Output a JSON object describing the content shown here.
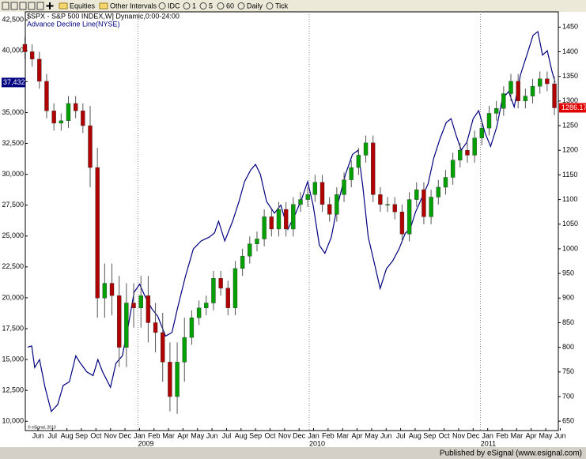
{
  "toolbar": [
    "Equities",
    "Other Intervals",
    "IDC",
    "1",
    "5",
    "60",
    "Daily",
    "Tick"
  ],
  "footer": "Published by eSignal (www.esignal.com)",
  "chart_data": {
    "type": "candlestick",
    "title": "$SPX - S&P 500 INDEX,W] Dynamic,0:00-24:00",
    "watermark": "© eSignal, 2010",
    "xlim": [
      -0.87,
      35.87
    ],
    "ylim": [
      9250,
      43150
    ],
    "y2lim": [
      631,
      1481
    ],
    "yticks": [
      {
        "value": 10000,
        "label": "10,000"
      },
      {
        "value": 12500,
        "label": "12,500"
      },
      {
        "value": 15000,
        "label": "15,000"
      },
      {
        "value": 17500,
        "label": "17,500"
      },
      {
        "value": 20000,
        "label": "20,000"
      },
      {
        "value": 22500,
        "label": "22,500"
      },
      {
        "value": 25000,
        "label": "25,000"
      },
      {
        "value": 27500,
        "label": "27,500"
      },
      {
        "value": 30000,
        "label": "30,000"
      },
      {
        "value": 32500,
        "label": "32,500"
      },
      {
        "value": 35000,
        "label": "35,000"
      },
      {
        "value": 37500,
        "label": "37,500"
      },
      {
        "value": 40000,
        "label": "40,000"
      },
      {
        "value": 42500,
        "label": "42,500"
      }
    ],
    "y2ticks": [
      650,
      700,
      750,
      800,
      850,
      900,
      950,
      1000,
      1050,
      1100,
      1150,
      1200,
      1250,
      1300,
      1350,
      1400,
      1450
    ],
    "xticks": [
      {
        "value": 0,
        "label": "Jun"
      },
      {
        "value": 1,
        "label": "Jul"
      },
      {
        "value": 2,
        "label": "Aug"
      },
      {
        "value": 3,
        "label": "Sep"
      },
      {
        "value": 4,
        "label": "Oct"
      },
      {
        "value": 5,
        "label": "Nov"
      },
      {
        "value": 6,
        "label": "Dec"
      },
      {
        "value": 7,
        "label": "Jan"
      },
      {
        "value": 8,
        "label": "Feb"
      },
      {
        "value": 9,
        "label": "Mar"
      },
      {
        "value": 10,
        "label": "Apr"
      },
      {
        "value": 11,
        "label": "May"
      },
      {
        "value": 12,
        "label": "Jun"
      },
      {
        "value": 13,
        "label": "Jul"
      },
      {
        "value": 14,
        "label": "Aug"
      },
      {
        "value": 15,
        "label": "Sep"
      },
      {
        "value": 16,
        "label": "Oct"
      },
      {
        "value": 17,
        "label": "Nov"
      },
      {
        "value": 18,
        "label": "Dec"
      },
      {
        "value": 19,
        "label": "Jan"
      },
      {
        "value": 20,
        "label": "Feb"
      },
      {
        "value": 21,
        "label": "Mar"
      },
      {
        "value": 22,
        "label": "Apr"
      },
      {
        "value": 23,
        "label": "May"
      },
      {
        "value": 24,
        "label": "Jun"
      },
      {
        "value": 25,
        "label": "Jul"
      },
      {
        "value": 26,
        "label": "Aug"
      },
      {
        "value": 27,
        "label": "Sep"
      },
      {
        "value": 28,
        "label": "Oct"
      },
      {
        "value": 29,
        "label": "Nov"
      },
      {
        "value": 30,
        "label": "Dec"
      },
      {
        "value": 31,
        "label": "Jan"
      },
      {
        "value": 32,
        "label": "Feb"
      },
      {
        "value": 33,
        "label": "Mar"
      },
      {
        "value": 34,
        "label": "Apr"
      },
      {
        "value": 35,
        "label": "May"
      },
      {
        "value": 36,
        "label": "Jun"
      }
    ],
    "year_labels": [
      {
        "value": 6.9,
        "label": "2009"
      },
      {
        "value": 18.7,
        "label": "2010"
      },
      {
        "value": 30.5,
        "label": "2011"
      }
    ],
    "series": [
      {
        "name": "Advance Decline Line(NYSE)",
        "color": "#000080",
        "axis": "y",
        "x": [
          -0.71,
          -0.43,
          -0.22,
          0.11,
          0.49,
          0.92,
          1.36,
          1.74,
          2.17,
          2.61,
          2.93,
          3.37,
          3.8,
          4.13,
          4.46,
          5,
          5.38,
          5.82,
          6.25,
          6.63,
          7.01,
          7.39,
          7.83,
          8.26,
          8.8,
          9.24,
          9.62,
          10.16,
          10.71,
          11.25,
          11.79,
          12.17,
          12.45,
          12.88,
          13.42,
          13.86,
          14.24,
          14.67,
          15,
          15.33,
          15.76,
          16.3,
          16.74,
          17.23,
          17.77,
          18.21,
          18.59,
          18.97,
          19.4,
          19.78,
          20.22,
          20.65,
          21.2,
          21.68,
          22.07,
          22.39,
          22.77,
          23.15,
          23.59,
          24.02,
          24.46,
          24.89,
          25.33,
          25.65,
          26.03,
          26.47,
          26.9,
          27.28,
          27.72,
          28.15,
          28.48,
          28.8,
          29.18,
          29.57,
          30,
          30.38,
          30.82,
          31.2,
          31.63,
          32.01,
          32.45,
          32.83,
          33.26,
          33.7,
          34.13,
          34.46,
          34.78,
          35.11,
          35.43,
          35.65
        ],
        "values": [
          16000,
          16100,
          14350,
          15000,
          12750,
          10800,
          11350,
          12900,
          13200,
          15300,
          14700,
          14000,
          13700,
          15000,
          14000,
          12750,
          14700,
          15300,
          17900,
          20450,
          21100,
          20100,
          19150,
          18500,
          16900,
          17200,
          19150,
          21700,
          23950,
          24600,
          24900,
          25250,
          26200,
          24600,
          26200,
          27800,
          29400,
          30350,
          30800,
          30000,
          27800,
          26850,
          27500,
          25550,
          26850,
          28100,
          29400,
          27500,
          24250,
          23600,
          24900,
          27500,
          30000,
          31600,
          31950,
          29050,
          24900,
          23000,
          20750,
          22350,
          23000,
          23950,
          25250,
          25550,
          26950,
          28100,
          29250,
          31300,
          32900,
          34200,
          34500,
          33250,
          31950,
          32600,
          34500,
          35150,
          33350,
          32250,
          33850,
          36100,
          36700,
          35450,
          38050,
          39650,
          41250,
          41550,
          39650,
          40000,
          38350,
          37432
        ],
        "value_labels": [
          null,
          null,
          null,
          null,
          null,
          null,
          null,
          null,
          null,
          null,
          null,
          null,
          null,
          null,
          null,
          null,
          null,
          null,
          null,
          null,
          null,
          null,
          null,
          null,
          null,
          null,
          null,
          null,
          null,
          null,
          null,
          null,
          null,
          null,
          null,
          null,
          null,
          null,
          null,
          null,
          null,
          null,
          null,
          null,
          null,
          null,
          null,
          null,
          null,
          null,
          null,
          null,
          null,
          null,
          null,
          null,
          null,
          null,
          null,
          null,
          null,
          null,
          null,
          null,
          null,
          null,
          null,
          null,
          null,
          null,
          null,
          null,
          null,
          null,
          null,
          null,
          null,
          null,
          null,
          null,
          null,
          null,
          null,
          null,
          null,
          null,
          null,
          null,
          null,
          "37,432"
        ]
      },
      {
        "name": "$SPX",
        "axis": "y2",
        "up_color": "#00a000",
        "down_color": "#b00000",
        "x": [
          -0.9,
          -0.4,
          0.1,
          0.6,
          1.1,
          1.6,
          2.1,
          2.6,
          3.1,
          3.6,
          4.1,
          4.6,
          5.1,
          5.6,
          6.1,
          6.6,
          7.1,
          7.6,
          8.1,
          8.6,
          9.1,
          9.6,
          10.1,
          10.6,
          11.1,
          11.6,
          12.1,
          12.6,
          13.1,
          13.6,
          14.1,
          14.6,
          15.1,
          15.6,
          16.1,
          16.6,
          17.1,
          17.6,
          18.1,
          18.6,
          19.1,
          19.6,
          20.1,
          20.6,
          21.1,
          21.6,
          22.1,
          22.6,
          23.1,
          23.6,
          24.1,
          24.6,
          25.1,
          25.6,
          26.1,
          26.6,
          27.1,
          27.6,
          28.1,
          28.6,
          29.1,
          29.6,
          30.1,
          30.6,
          31.1,
          31.6,
          32.1,
          32.6,
          33.1,
          33.6,
          34.1,
          34.6,
          35.1,
          35.6
        ],
        "open": [
          1415,
          1400,
          1385,
          1340,
          1280,
          1255,
          1260,
          1295,
          1280,
          1250,
          1165,
          900,
          930,
          905,
          800,
          890,
          880,
          905,
          850,
          830,
          770,
          700,
          770,
          820,
          860,
          880,
          890,
          940,
          920,
          880,
          960,
          985,
          1010,
          1020,
          1065,
          1040,
          1080,
          1040,
          1090,
          1100,
          1110,
          1135,
          1090,
          1070,
          1110,
          1140,
          1165,
          1190,
          1215,
          1110,
          1090,
          1090,
          1075,
          1030,
          1100,
          1120,
          1065,
          1105,
          1125,
          1145,
          1180,
          1200,
          1190,
          1225,
          1245,
          1275,
          1285,
          1315,
          1340,
          1300,
          1310,
          1330,
          1345,
          1335
        ],
        "high": [
          1430,
          1415,
          1400,
          1355,
          1295,
          1275,
          1310,
          1310,
          1295,
          1290,
          1205,
          970,
          970,
          945,
          930,
          930,
          945,
          945,
          890,
          870,
          810,
          810,
          860,
          875,
          895,
          905,
          955,
          955,
          935,
          975,
          1000,
          1025,
          1035,
          1080,
          1080,
          1095,
          1095,
          1105,
          1115,
          1125,
          1150,
          1150,
          1105,
          1125,
          1155,
          1180,
          1205,
          1230,
          1230,
          1125,
          1105,
          1105,
          1090,
          1115,
          1135,
          1135,
          1120,
          1140,
          1160,
          1195,
          1215,
          1215,
          1240,
          1260,
          1290,
          1300,
          1330,
          1355,
          1355,
          1325,
          1345,
          1360,
          1360,
          1350
        ],
        "low": [
          1385,
          1370,
          1325,
          1265,
          1240,
          1240,
          1245,
          1265,
          1235,
          1125,
          860,
          860,
          865,
          760,
          760,
          840,
          840,
          810,
          790,
          730,
          670,
          665,
          730,
          805,
          845,
          865,
          875,
          905,
          865,
          865,
          945,
          970,
          995,
          1005,
          1025,
          1025,
          1025,
          1025,
          1075,
          1085,
          1095,
          1075,
          1055,
          1055,
          1095,
          1125,
          1150,
          1175,
          1095,
          1075,
          1075,
          1060,
          1015,
          1015,
          1085,
          1050,
          1050,
          1090,
          1110,
          1130,
          1165,
          1175,
          1175,
          1210,
          1230,
          1260,
          1270,
          1300,
          1285,
          1285,
          1295,
          1315,
          1320,
          1271
        ],
        "close": [
          1400,
          1385,
          1340,
          1280,
          1255,
          1260,
          1295,
          1280,
          1250,
          1165,
          900,
          930,
          905,
          800,
          890,
          880,
          905,
          850,
          830,
          770,
          700,
          770,
          820,
          860,
          880,
          890,
          940,
          920,
          880,
          960,
          985,
          1010,
          1020,
          1065,
          1040,
          1080,
          1040,
          1090,
          1100,
          1110,
          1135,
          1090,
          1070,
          1110,
          1140,
          1165,
          1190,
          1215,
          1110,
          1090,
          1090,
          1075,
          1030,
          1100,
          1120,
          1065,
          1105,
          1125,
          1145,
          1180,
          1200,
          1190,
          1225,
          1245,
          1275,
          1285,
          1315,
          1340,
          1300,
          1310,
          1330,
          1345,
          1335,
          1286.17
        ]
      }
    ]
  }
}
